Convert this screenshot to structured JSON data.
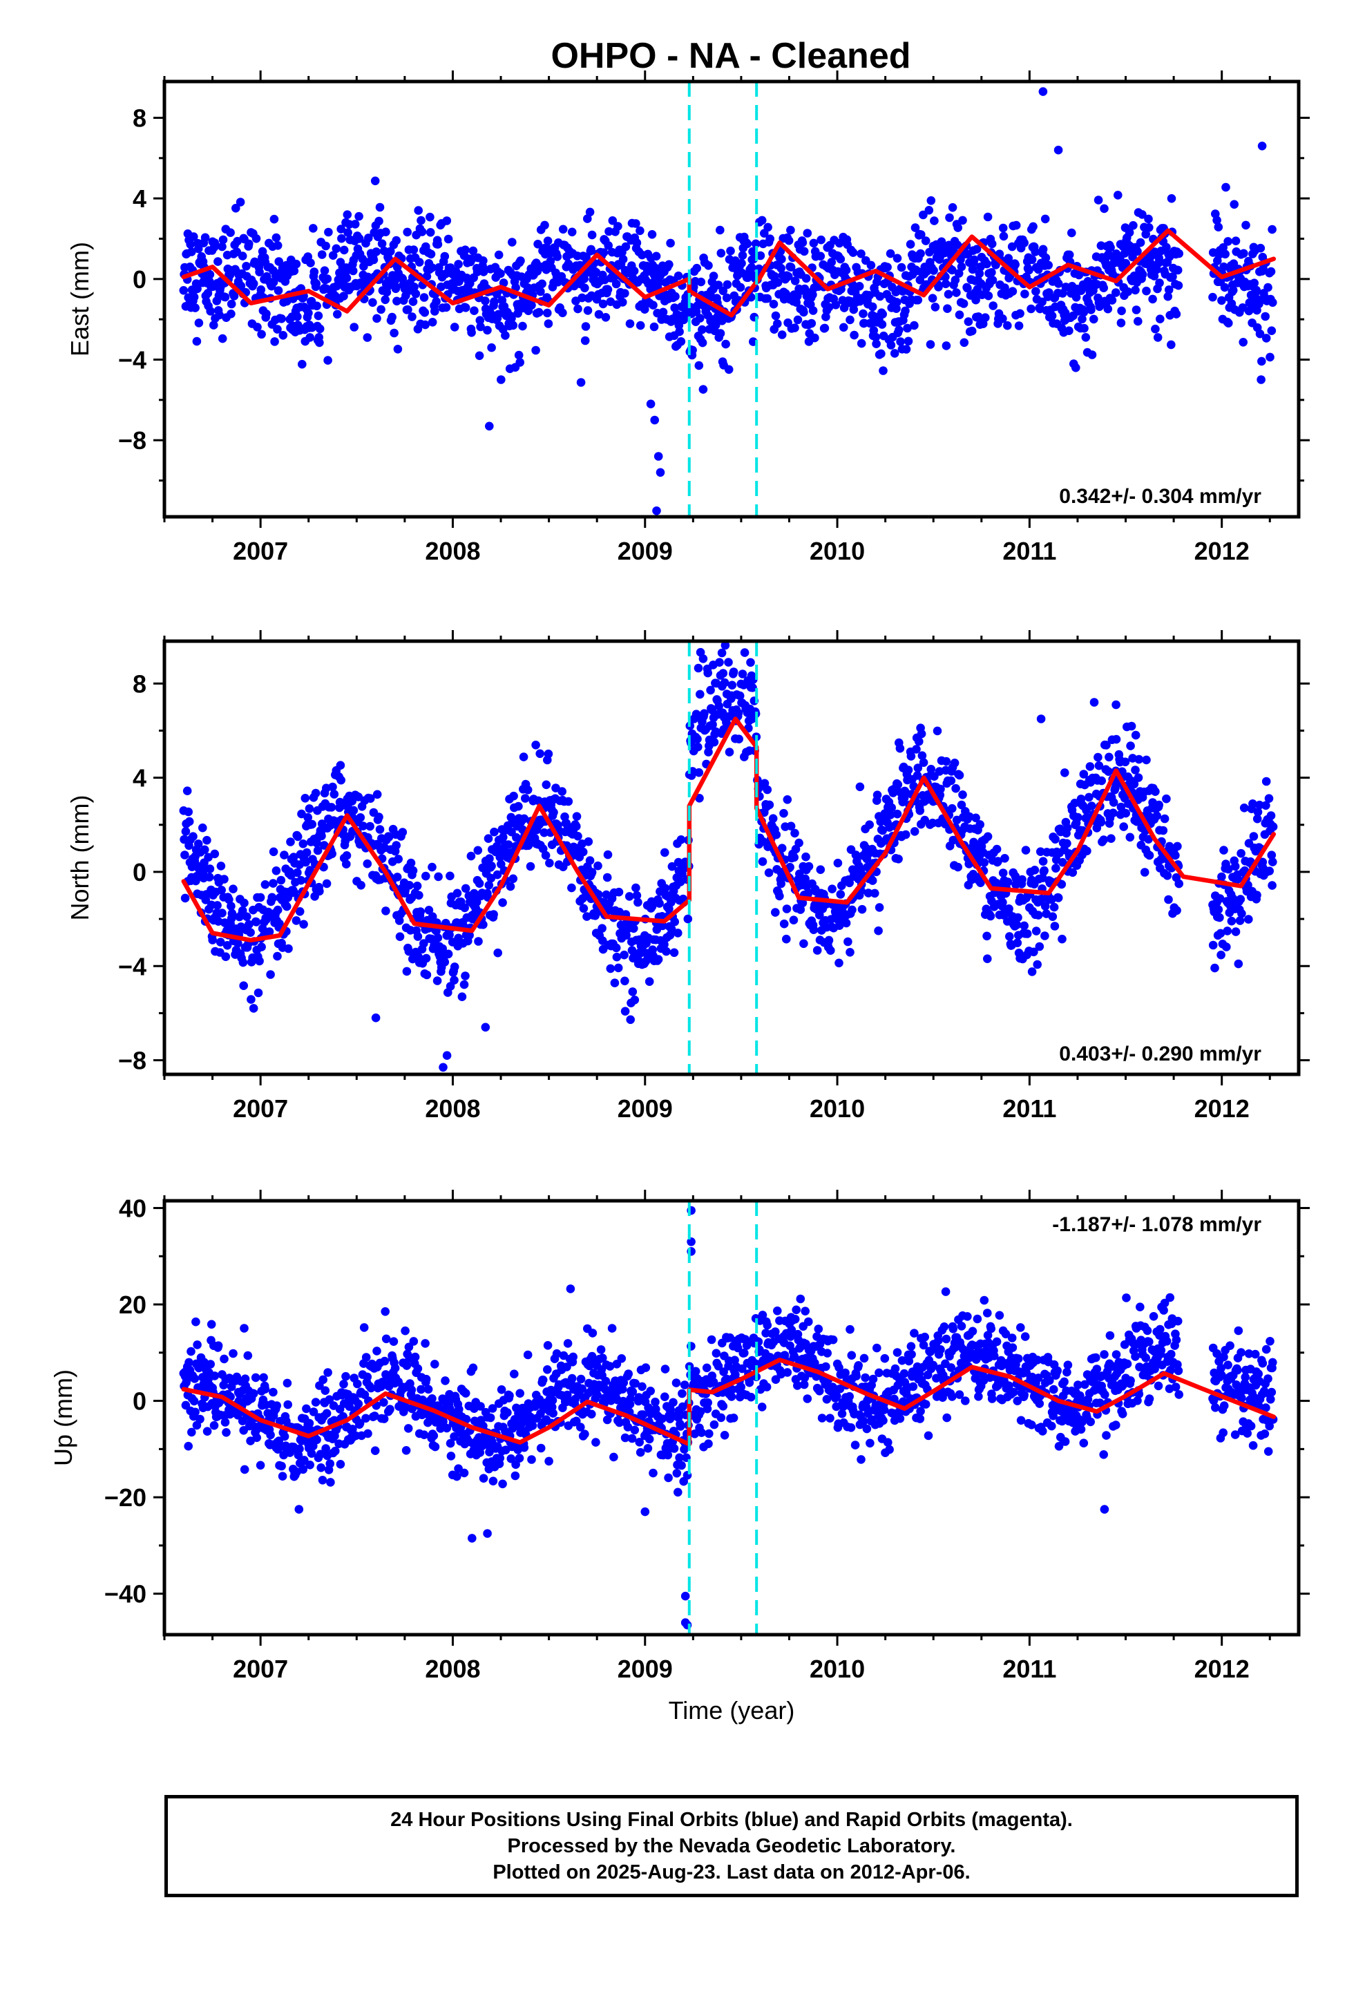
{
  "title": "OHPO  - NA - Cleaned",
  "colors": {
    "points": "#0000ff",
    "fit": "#ff0000",
    "offsets": "#00e5e5",
    "frame": "#000000"
  },
  "footer": {
    "line1": "24 Hour Positions Using Final Orbits (blue) and Rapid Orbits (magenta).",
    "line2": "Processed by the Nevada Geodetic Laboratory.",
    "line3": "Plotted on 2025-Aug-23. Last data on 2012-Apr-06."
  },
  "chart_data": [
    {
      "type": "scatter",
      "ylabel": "East (mm)",
      "xlabel": "",
      "xlim": [
        2006.5,
        2012.4
      ],
      "ylim": [
        -11.8,
        9.8
      ],
      "xticks": [
        2007,
        2008,
        2009,
        2010,
        2011,
        2012
      ],
      "yticks": [
        -8,
        -4,
        0,
        4,
        8
      ],
      "yticklabels": [
        "−8",
        "−4",
        "0",
        "4",
        "8"
      ],
      "rate": "0.342+/- 0.304 mm/yr",
      "rate_position": "bottom-right",
      "offsets": [
        2009.23,
        2009.58
      ],
      "data_range": [
        2006.6,
        2012.27
      ],
      "scatter_sigma": 1.3,
      "trend": [
        [
          2006.6,
          0.0
        ],
        [
          2009.23,
          -0.3
        ],
        [
          2009.23,
          -0.6
        ],
        [
          2012.27,
          0.4
        ]
      ],
      "annual": {
        "amp": 0.7,
        "phase": 2007.7
      },
      "semiannual": {
        "amp": 0.7,
        "phase": 2007.0
      },
      "outliers": [
        [
          2009.03,
          -6.2
        ],
        [
          2009.05,
          -7.0
        ],
        [
          2009.07,
          -8.8
        ],
        [
          2009.08,
          -9.6
        ],
        [
          2009.06,
          -11.5
        ],
        [
          2008.19,
          -7.3
        ],
        [
          2011.07,
          9.3
        ],
        [
          2011.15,
          6.4
        ],
        [
          2012.21,
          6.6
        ]
      ],
      "fit": [
        [
          2006.6,
          0.1
        ],
        [
          2006.75,
          0.6
        ],
        [
          2006.95,
          -1.2
        ],
        [
          2007.25,
          -0.6
        ],
        [
          2007.45,
          -1.6
        ],
        [
          2007.7,
          1.0
        ],
        [
          2008.0,
          -1.2
        ],
        [
          2008.25,
          -0.4
        ],
        [
          2008.5,
          -1.3
        ],
        [
          2008.75,
          1.2
        ],
        [
          2009.0,
          -0.9
        ],
        [
          2009.23,
          0.0
        ],
        [
          2009.23,
          -0.6
        ],
        [
          2009.45,
          -1.8
        ],
        [
          2009.6,
          0.1
        ],
        [
          2009.7,
          1.8
        ],
        [
          2009.95,
          -0.5
        ],
        [
          2010.2,
          0.4
        ],
        [
          2010.45,
          -0.8
        ],
        [
          2010.7,
          2.1
        ],
        [
          2011.0,
          -0.4
        ],
        [
          2011.2,
          0.7
        ],
        [
          2011.45,
          -0.1
        ],
        [
          2011.72,
          2.4
        ],
        [
          2012.0,
          0.1
        ],
        [
          2012.27,
          1.0
        ]
      ]
    },
    {
      "type": "scatter",
      "ylabel": "North (mm)",
      "xlabel": "",
      "xlim": [
        2006.5,
        2012.4
      ],
      "ylim": [
        -8.6,
        9.8
      ],
      "xticks": [
        2007,
        2008,
        2009,
        2010,
        2011,
        2012
      ],
      "yticks": [
        -8,
        -4,
        0,
        4,
        8
      ],
      "yticklabels": [
        "−8",
        "−4",
        "0",
        "4",
        "8"
      ],
      "rate": "0.403+/- 0.290 mm/yr",
      "rate_position": "bottom-right",
      "offsets": [
        2009.23,
        2009.58
      ],
      "data_range": [
        2006.6,
        2012.27
      ],
      "scatter_sigma": 1.1,
      "trend": [
        [
          2006.6,
          -0.3
        ],
        [
          2009.23,
          -0.3
        ],
        [
          2009.23,
          4.7
        ],
        [
          2009.58,
          4.7
        ],
        [
          2009.58,
          1.0
        ],
        [
          2012.27,
          1.0
        ]
      ],
      "annual": {
        "amp": 2.7,
        "phase": 2007.45
      },
      "semiannual": {
        "amp": 0.0,
        "phase": 2007.0
      },
      "outliers": [
        [
          2007.95,
          -8.3
        ],
        [
          2007.97,
          -7.8
        ],
        [
          2008.17,
          -6.6
        ],
        [
          2009.4,
          9.3
        ],
        [
          2011.06,
          6.5
        ],
        [
          2011.45,
          7.1
        ],
        [
          2007.6,
          -6.2
        ]
      ],
      "fit": [
        [
          2006.6,
          -0.4
        ],
        [
          2006.75,
          -2.6
        ],
        [
          2006.95,
          -2.9
        ],
        [
          2007.1,
          -2.7
        ],
        [
          2007.25,
          -0.5
        ],
        [
          2007.45,
          2.4
        ],
        [
          2007.65,
          0.0
        ],
        [
          2007.8,
          -2.2
        ],
        [
          2008.1,
          -2.5
        ],
        [
          2008.25,
          -0.6
        ],
        [
          2008.45,
          2.8
        ],
        [
          2008.65,
          0.0
        ],
        [
          2008.8,
          -1.9
        ],
        [
          2009.1,
          -2.1
        ],
        [
          2009.23,
          -1.2
        ],
        [
          2009.23,
          2.8
        ],
        [
          2009.47,
          6.5
        ],
        [
          2009.58,
          5.3
        ],
        [
          2009.58,
          2.7
        ],
        [
          2009.8,
          -1.1
        ],
        [
          2010.05,
          -1.3
        ],
        [
          2010.25,
          0.8
        ],
        [
          2010.45,
          4.0
        ],
        [
          2010.65,
          1.2
        ],
        [
          2010.8,
          -0.7
        ],
        [
          2011.1,
          -0.9
        ],
        [
          2011.25,
          0.9
        ],
        [
          2011.45,
          4.3
        ],
        [
          2011.65,
          1.4
        ],
        [
          2011.8,
          -0.2
        ],
        [
          2012.1,
          -0.6
        ],
        [
          2012.27,
          1.6
        ]
      ]
    },
    {
      "type": "scatter",
      "ylabel": "Up (mm)",
      "xlabel": "Time (year)",
      "xlim": [
        2006.5,
        2012.4
      ],
      "ylim": [
        -48.5,
        41.5
      ],
      "xticks": [
        2007,
        2008,
        2009,
        2010,
        2011,
        2012
      ],
      "yticks": [
        -40,
        -20,
        0,
        20,
        40
      ],
      "yticklabels": [
        "−40",
        "−20",
        "0",
        "20",
        "40"
      ],
      "rate": "-1.187+/- 1.078 mm/yr",
      "rate_position": "top-right",
      "offsets": [
        2009.23,
        2009.58
      ],
      "data_range": [
        2006.6,
        2012.27
      ],
      "scatter_sigma": 4.8,
      "trend": [
        [
          2006.6,
          -2.0
        ],
        [
          2009.23,
          -2.0
        ],
        [
          2009.23,
          5.0
        ],
        [
          2012.27,
          5.0
        ]
      ],
      "annual": {
        "amp": 5.5,
        "phase": 2007.7
      },
      "semiannual": {
        "amp": 0.0,
        "phase": 2007.0
      },
      "outliers": [
        [
          2009.24,
          39.5
        ],
        [
          2009.24,
          33.0
        ],
        [
          2009.24,
          31.0
        ],
        [
          2009.21,
          -40.5
        ],
        [
          2009.21,
          -46.0
        ],
        [
          2009.22,
          -46.5
        ],
        [
          2008.1,
          -28.5
        ],
        [
          2008.18,
          -27.5
        ],
        [
          2007.2,
          -22.5
        ],
        [
          2011.39,
          -22.5
        ],
        [
          2009.0,
          -23.0
        ]
      ],
      "fit": [
        [
          2006.6,
          2.4
        ],
        [
          2006.8,
          0.8
        ],
        [
          2007.0,
          -4.0
        ],
        [
          2007.25,
          -7.3
        ],
        [
          2007.45,
          -4.0
        ],
        [
          2007.65,
          1.5
        ],
        [
          2007.9,
          -2.0
        ],
        [
          2008.1,
          -5.5
        ],
        [
          2008.35,
          -8.6
        ],
        [
          2008.5,
          -5.5
        ],
        [
          2008.7,
          -0.2
        ],
        [
          2008.9,
          -3.0
        ],
        [
          2009.23,
          -9.0
        ],
        [
          2009.23,
          2.3
        ],
        [
          2009.35,
          1.8
        ],
        [
          2009.5,
          4.5
        ],
        [
          2009.7,
          8.5
        ],
        [
          2009.9,
          6.0
        ],
        [
          2010.15,
          1.5
        ],
        [
          2010.35,
          -1.6
        ],
        [
          2010.5,
          2.0
        ],
        [
          2010.7,
          7.0
        ],
        [
          2010.9,
          5.0
        ],
        [
          2011.15,
          0.0
        ],
        [
          2011.35,
          -2.2
        ],
        [
          2011.5,
          1.0
        ],
        [
          2011.7,
          5.7
        ],
        [
          2011.9,
          2.5
        ],
        [
          2012.27,
          -3.3
        ]
      ]
    }
  ]
}
